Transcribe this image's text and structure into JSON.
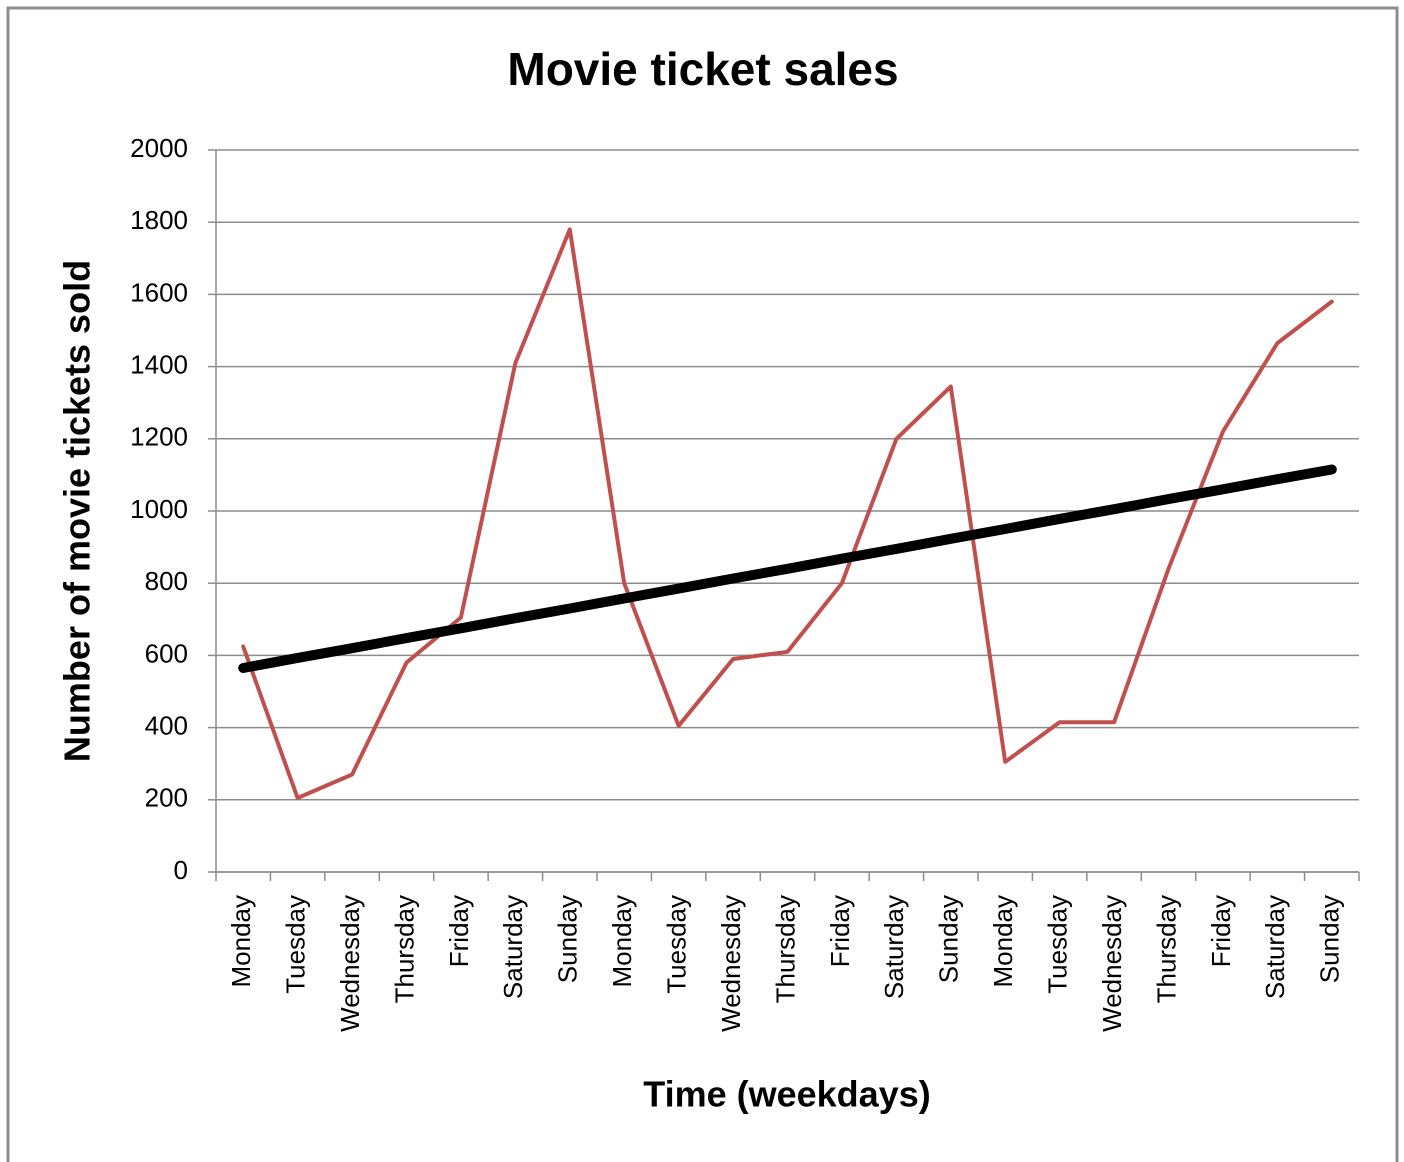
{
  "chart_data": {
    "type": "line",
    "title": "Movie ticket sales",
    "x_label": "Time (weekdays)",
    "y_label": "Number of movie tickets sold",
    "categories": [
      "Monday",
      "Tuesday",
      "Wednesday",
      "Thursday",
      "Friday",
      "Saturday",
      "Sunday",
      "Monday",
      "Tuesday",
      "Wednesday",
      "Thursday",
      "Friday",
      "Saturday",
      "Sunday",
      "Monday",
      "Tuesday",
      "Wednesday",
      "Thursday",
      "Friday",
      "Saturday",
      "Sunday"
    ],
    "series": [
      {
        "color": "#c0504d",
        "width": 4,
        "values": [
          625,
          205,
          270,
          580,
          705,
          1410,
          1780,
          800,
          405,
          590,
          610,
          800,
          1200,
          1345,
          305,
          415,
          415,
          840,
          1220,
          1465,
          1580
        ]
      },
      {
        "color": "#000000",
        "width": 10,
        "values": [
          565,
          593,
          620,
          648,
          675,
          703,
          730,
          758,
          785,
          813,
          840,
          868,
          895,
          923,
          950,
          978,
          1005,
          1033,
          1060,
          1088,
          1115
        ]
      }
    ],
    "ylim": [
      0,
      2000
    ],
    "yticks": [
      0,
      200,
      400,
      600,
      800,
      1000,
      1200,
      1400,
      1600,
      1800,
      2000
    ],
    "grid": true
  }
}
